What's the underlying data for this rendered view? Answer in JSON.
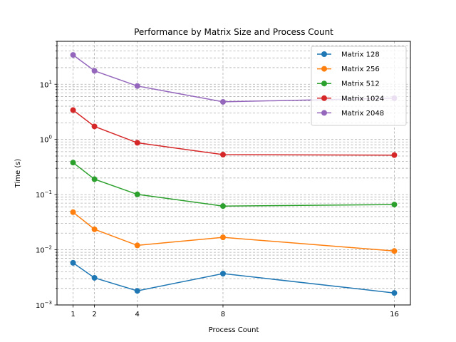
{
  "chart_data": {
    "type": "line",
    "title": "Performance by Matrix Size and Process Count",
    "xlabel": "Process Count",
    "ylabel": "Time (s)",
    "x": [
      1,
      2,
      4,
      8,
      16
    ],
    "x_ticks": [
      "1",
      "2",
      "4",
      "8",
      "16"
    ],
    "xlim": [
      0.25,
      16.75
    ],
    "y_scale": "log",
    "ylim": [
      0.001,
      60
    ],
    "y_ticks": [
      0.001,
      0.01,
      0.1,
      1,
      10
    ],
    "y_tick_labels": [
      {
        "base": "10",
        "exp": "−3"
      },
      {
        "base": "10",
        "exp": "−2"
      },
      {
        "base": "10",
        "exp": "−1"
      },
      {
        "base": "10",
        "exp": "0"
      },
      {
        "base": "10",
        "exp": "1"
      }
    ],
    "grid": true,
    "legend_position": "upper right",
    "series": [
      {
        "name": "Matrix 128",
        "color": "#1f77b4",
        "values": [
          0.0058,
          0.0031,
          0.0018,
          0.0037,
          0.00165
        ]
      },
      {
        "name": "Matrix 256",
        "color": "#ff7f0e",
        "values": [
          0.048,
          0.0235,
          0.012,
          0.0168,
          0.0095
        ]
      },
      {
        "name": "Matrix 512",
        "color": "#2ca02c",
        "values": [
          0.38,
          0.19,
          0.101,
          0.062,
          0.066
        ]
      },
      {
        "name": "Matrix 1024",
        "color": "#d62728",
        "values": [
          3.4,
          1.72,
          0.87,
          0.53,
          0.52
        ]
      },
      {
        "name": "Matrix 2048",
        "color": "#9467bd",
        "values": [
          34,
          17.5,
          9.3,
          4.8,
          5.6
        ]
      }
    ]
  }
}
